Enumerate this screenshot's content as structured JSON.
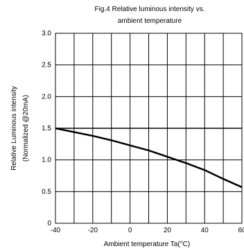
{
  "chart_data": {
    "type": "line",
    "title_lines": [
      "Fig.4 Relative luminous intensity vs.",
      "ambient temperature"
    ],
    "xlabel": "Ambient temperature Ta(°C)",
    "ylabel_lines": [
      "Relative Luminous intensity",
      "(Normalized @20mA)"
    ],
    "xlim": [
      -40,
      60
    ],
    "ylim": [
      0,
      3.0
    ],
    "x_ticks": [
      -40,
      -20,
      0,
      20,
      40,
      60
    ],
    "x_tick_labels": [
      "-40",
      "-20",
      "0",
      "20",
      "40",
      "60"
    ],
    "x_minor_step": 10,
    "y_ticks": [
      0,
      0.5,
      1.0,
      1.5,
      2.0,
      2.5,
      3.0
    ],
    "y_tick_labels": [
      "0",
      "0.5",
      "1.0",
      "1.5",
      "2.0",
      "2.5",
      "3.0"
    ],
    "grid": true,
    "series": [
      {
        "color": "#000000",
        "x": [
          -40,
          -30,
          -20,
          -10,
          0,
          10,
          20,
          30,
          40,
          50,
          60
        ],
        "y": [
          1.5,
          1.44,
          1.38,
          1.31,
          1.23,
          1.15,
          1.05,
          0.95,
          0.84,
          0.7,
          0.57
        ]
      }
    ]
  }
}
